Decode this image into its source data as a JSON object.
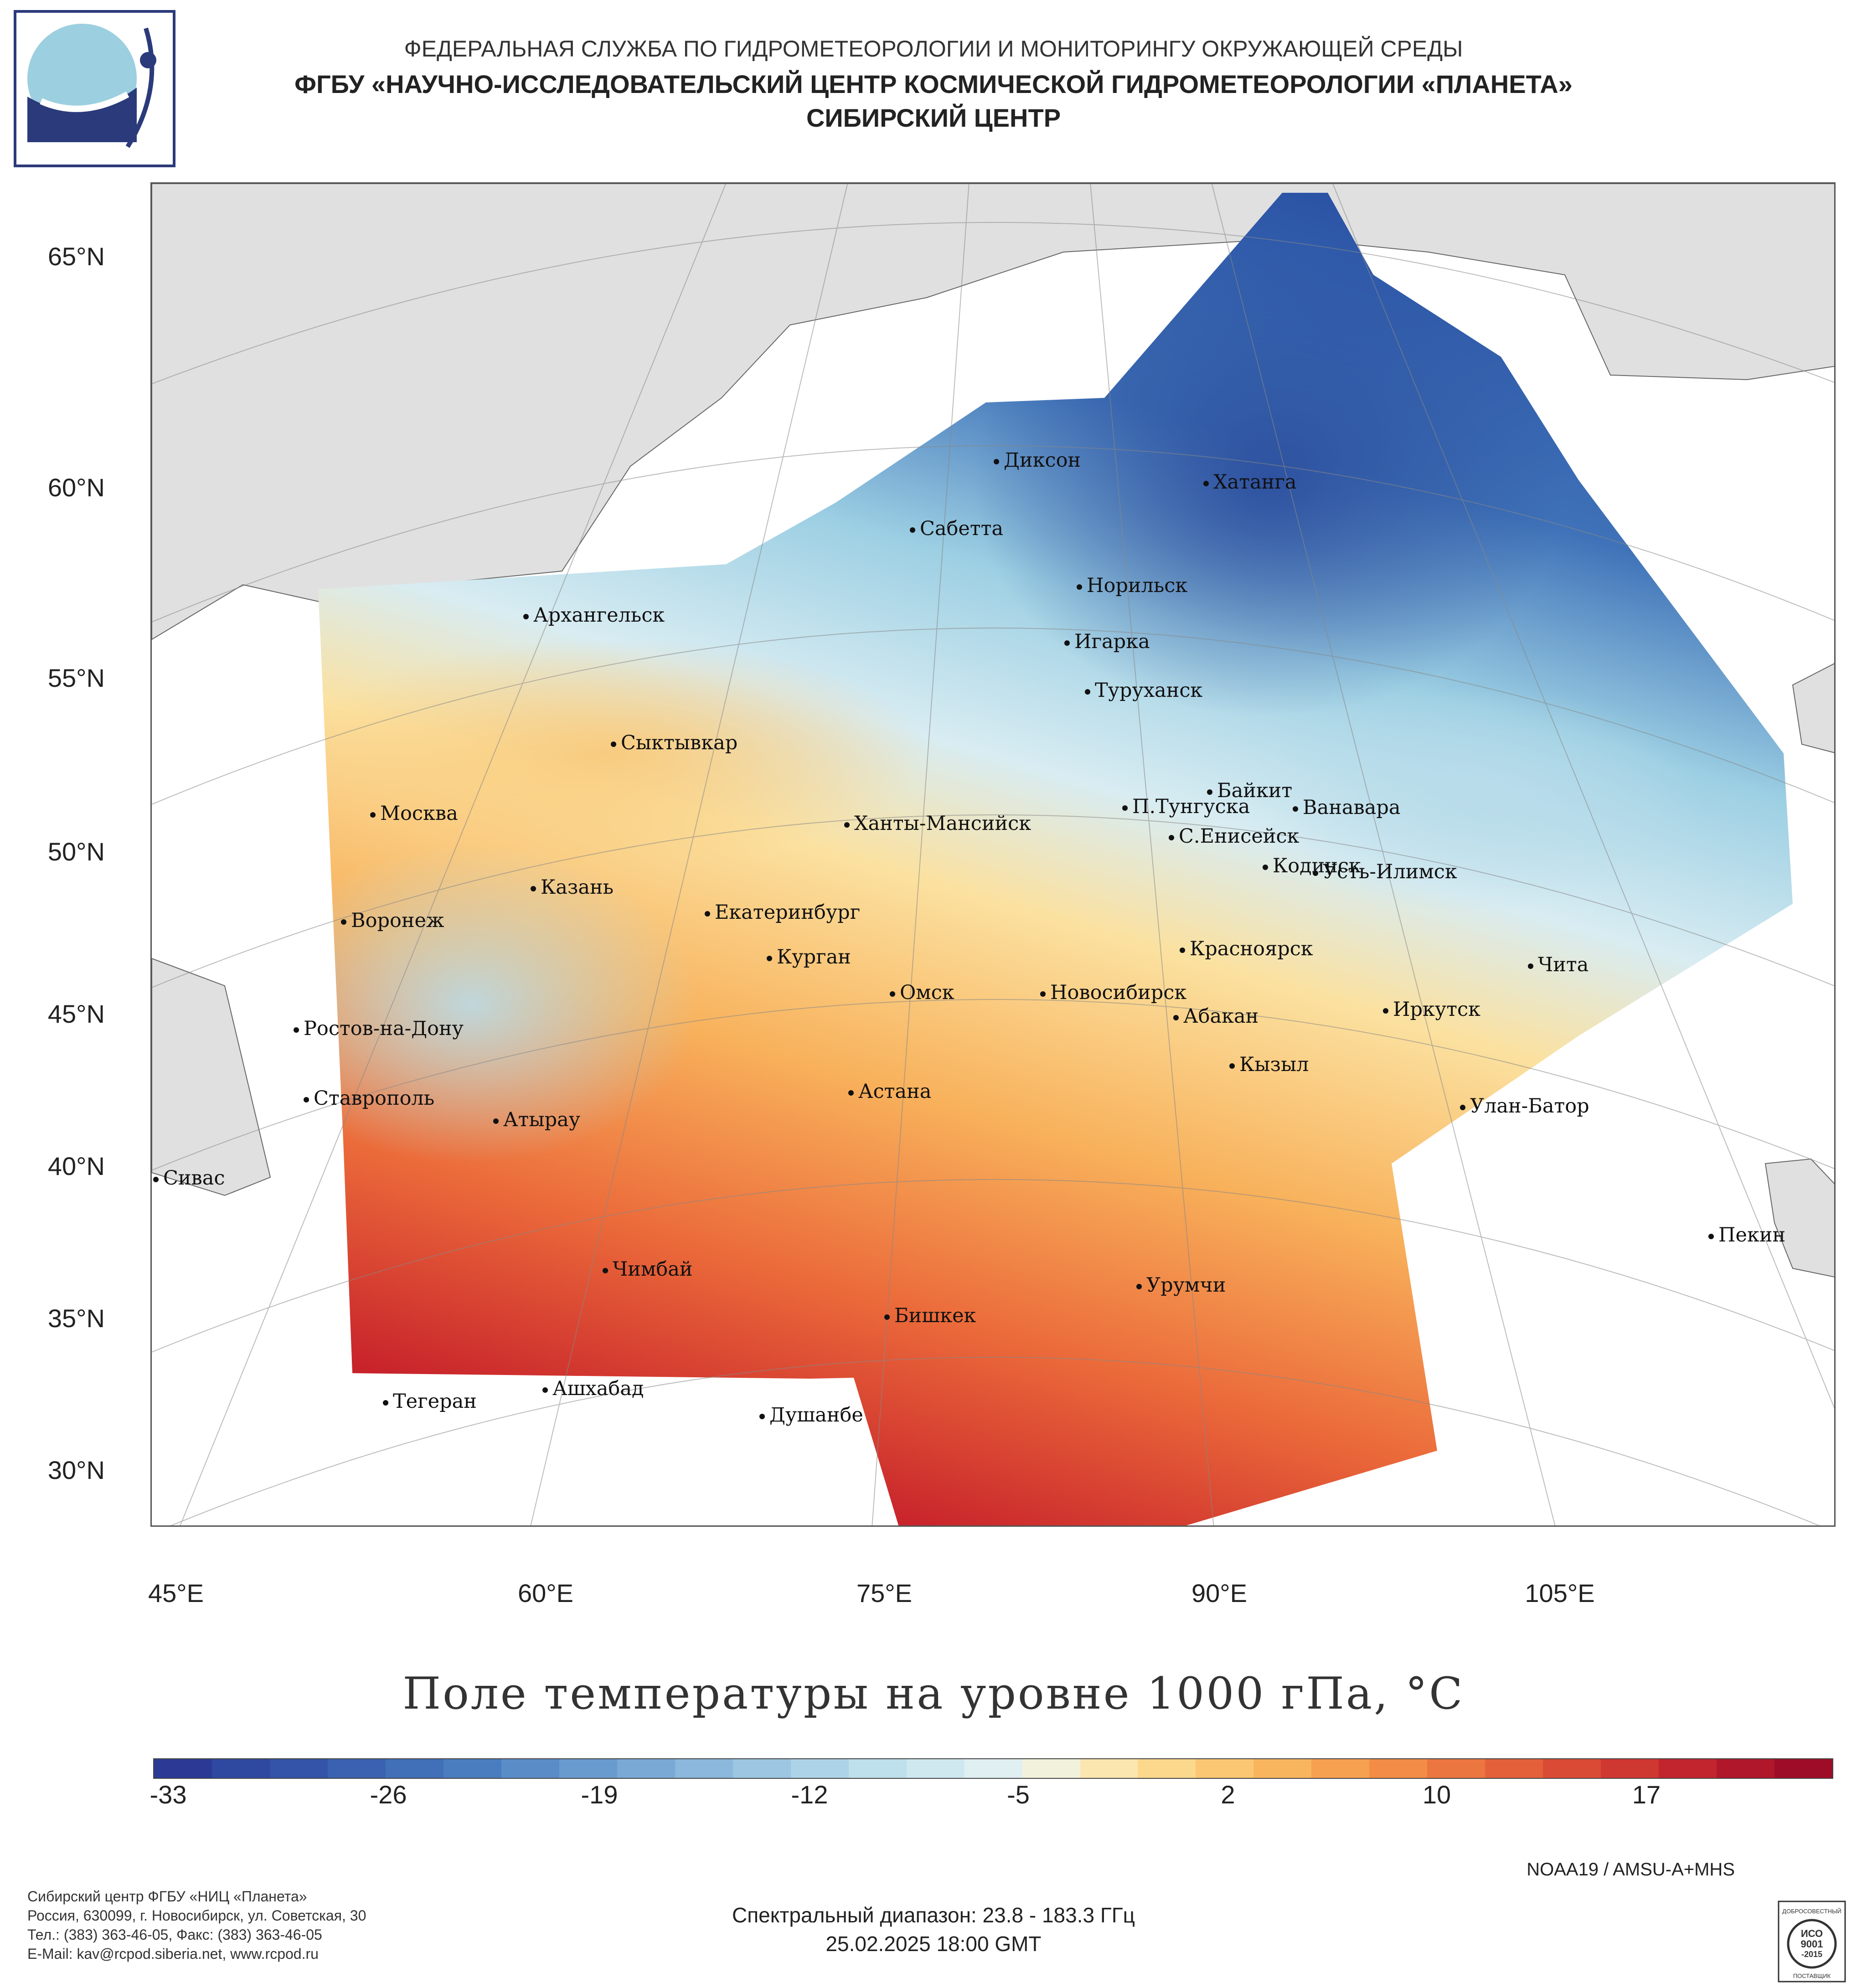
{
  "header": {
    "line1": "ФЕДЕРАЛЬНАЯ СЛУЖБА ПО ГИДРОМЕТЕОРОЛОГИИ И МОНИТОРИНГУ ОКРУЖАЮЩЕЙ СРЕДЫ",
    "line2": "ФГБУ «НАУЧНО-ИССЛЕДОВАТЕЛЬСКИЙ ЦЕНТР КОСМИЧЕСКОЙ ГИДРОМЕТЕОРОЛОГИИ «ПЛАНЕТА»",
    "line3": "СИБИРСКИЙ ЦЕНТР"
  },
  "map": {
    "lat_labels": [
      "65°N",
      "60°N",
      "55°N",
      "50°N",
      "45°N",
      "40°N",
      "35°N",
      "30°N"
    ],
    "lon_labels": [
      "45°E",
      "60°E",
      "75°E",
      "90°E",
      "105°E"
    ],
    "cities": [
      "Диксон",
      "Хатанга",
      "Сабетта",
      "Норильск",
      "Архангельск",
      "Игарка",
      "Туруханск",
      "Сыктывкар",
      "Байкит",
      "Москва",
      "П.Тунгуска",
      "Ванавара",
      "Ханты-Мансийск",
      "С.Енисейск",
      "Кодинск",
      "Усть-Илимск",
      "Казань",
      "Екатеринбург",
      "Воронеж",
      "Красноярск",
      "Курган",
      "Чита",
      "Омск",
      "Новосибирск",
      "Иркутск",
      "Ростов-на-Дону",
      "Абакан",
      "Кызыл",
      "Ставрополь",
      "Астана",
      "Улан-Батор",
      "Атырау",
      "Сивас",
      "Пекин",
      "Чимбай",
      "Урумчи",
      "Бишкек",
      "Ашхабад",
      "Тегеран",
      "Душанбе"
    ],
    "colors": {
      "land": "#e0e0e0",
      "cold": "#2c54a6",
      "warm": "#c8232b"
    }
  },
  "title": "Поле температуры на уровне 1000 гПа, °C",
  "colorbar": {
    "ticks": [
      "-33",
      "-26",
      "-19",
      "-12",
      "-5",
      "2",
      "10",
      "17"
    ],
    "range": [
      -35,
      22
    ]
  },
  "footer": {
    "satellite": "NOAA19 / AMSU-A+MHS",
    "spectral": "Спектральный диапазон: 23.8 - 183.3 ГГц",
    "datetime": "25.02.2025 18:00 GMT",
    "address": [
      "Сибирский центр ФГБУ «НИЦ «Планета»",
      "Россия, 630099, г. Новосибирск, ул. Советская, 30",
      "Тел.: (383) 363-46-05, Факс: (383) 363-46-05",
      "E-Mail: kav@rcpod.siberia.net, www.rcpod.ru"
    ],
    "iso": [
      "ДОБРОСОВЕСТНЫЙ",
      "ИСО",
      "9001",
      "-2015",
      "ПОСТАВЩИК"
    ]
  }
}
